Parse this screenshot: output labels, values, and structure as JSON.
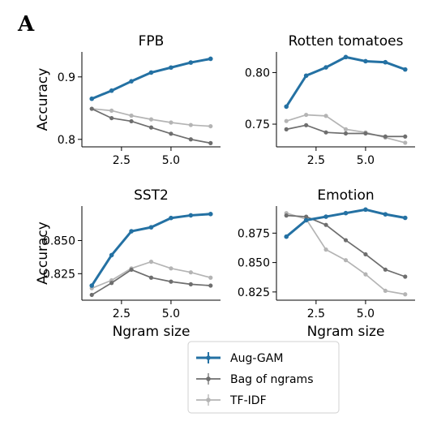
{
  "figure": {
    "panel_letter": "A"
  },
  "colors": {
    "aug_gam": "#2471a3",
    "bag_of_ngrams": "#6e6e6e",
    "tf_idf": "#b4b4b4",
    "axis": "#000000"
  },
  "legend": {
    "entries": [
      "Aug-GAM",
      "Bag of ngrams",
      "TF-IDF"
    ]
  },
  "chart_data": [
    {
      "type": "line",
      "title": "FPB",
      "xlabel": "",
      "ylabel": "Accuracy",
      "xlim": [
        0.5,
        7.5
      ],
      "ylim": [
        0.788,
        0.94
      ],
      "xticks": [
        2.5,
        5.0
      ],
      "xtick_labels": [
        "2.5",
        "5.0"
      ],
      "yticks": [
        0.8,
        0.9
      ],
      "ytick_labels": [
        "0.8",
        "0.9"
      ],
      "x": [
        1,
        2,
        3,
        4,
        5,
        6,
        7
      ],
      "series": [
        {
          "name": "Aug-GAM",
          "values": [
            0.865,
            0.878,
            0.893,
            0.907,
            0.915,
            0.923,
            0.929
          ]
        },
        {
          "name": "Bag of ngrams",
          "values": [
            0.849,
            0.834,
            0.829,
            0.819,
            0.809,
            0.8,
            0.794
          ]
        },
        {
          "name": "TF-IDF",
          "values": [
            0.849,
            0.846,
            0.838,
            0.832,
            0.827,
            0.823,
            0.821
          ]
        }
      ]
    },
    {
      "type": "line",
      "title": "Rotten tomatoes",
      "xlabel": "",
      "ylabel": "",
      "xlim": [
        0.5,
        7.5
      ],
      "ylim": [
        0.728,
        0.82
      ],
      "xticks": [
        2.5,
        5.0
      ],
      "xtick_labels": [
        "2.5",
        "5.0"
      ],
      "yticks": [
        0.75,
        0.8
      ],
      "ytick_labels": [
        "0.75",
        "0.80"
      ],
      "x": [
        1,
        2,
        3,
        4,
        5,
        6,
        7
      ],
      "series": [
        {
          "name": "Aug-GAM",
          "values": [
            0.767,
            0.797,
            0.805,
            0.815,
            0.811,
            0.81,
            0.803
          ]
        },
        {
          "name": "Bag of ngrams",
          "values": [
            0.745,
            0.749,
            0.742,
            0.741,
            0.741,
            0.738,
            0.738
          ]
        },
        {
          "name": "TF-IDF",
          "values": [
            0.753,
            0.759,
            0.758,
            0.745,
            0.742,
            0.737,
            0.732
          ]
        }
      ]
    },
    {
      "type": "line",
      "title": "SST2",
      "xlabel": "Ngram size",
      "ylabel": "Accuracy",
      "xlim": [
        0.5,
        7.5
      ],
      "ylim": [
        0.805,
        0.876
      ],
      "xticks": [
        2.5,
        5.0
      ],
      "xtick_labels": [
        "2.5",
        "5.0"
      ],
      "yticks": [
        0.825,
        0.85
      ],
      "ytick_labels": [
        "0.825",
        "0.850"
      ],
      "x": [
        1,
        2,
        3,
        4,
        5,
        6,
        7
      ],
      "series": [
        {
          "name": "Aug-GAM",
          "values": [
            0.816,
            0.839,
            0.857,
            0.86,
            0.867,
            0.869,
            0.87
          ]
        },
        {
          "name": "Bag of ngrams",
          "values": [
            0.809,
            0.818,
            0.828,
            0.822,
            0.819,
            0.817,
            0.816
          ]
        },
        {
          "name": "TF-IDF",
          "values": [
            0.814,
            0.82,
            0.829,
            0.834,
            0.829,
            0.826,
            0.822
          ]
        }
      ]
    },
    {
      "type": "line",
      "title": "Emotion",
      "xlabel": "Ngram size",
      "ylabel": "",
      "xlim": [
        0.5,
        7.5
      ],
      "ylim": [
        0.818,
        0.898
      ],
      "xticks": [
        2.5,
        5.0
      ],
      "xtick_labels": [
        "2.5",
        "5.0"
      ],
      "yticks": [
        0.825,
        0.85,
        0.875
      ],
      "ytick_labels": [
        "0.825",
        "0.850",
        "0.875"
      ],
      "x": [
        1,
        2,
        3,
        4,
        5,
        6,
        7
      ],
      "series": [
        {
          "name": "Aug-GAM",
          "values": [
            0.872,
            0.886,
            0.889,
            0.892,
            0.895,
            0.891,
            0.888
          ]
        },
        {
          "name": "Bag of ngrams",
          "values": [
            0.89,
            0.889,
            0.882,
            0.869,
            0.857,
            0.844,
            0.838
          ]
        },
        {
          "name": "TF-IDF",
          "values": [
            0.892,
            0.887,
            0.861,
            0.852,
            0.84,
            0.826,
            0.823
          ]
        }
      ]
    }
  ]
}
